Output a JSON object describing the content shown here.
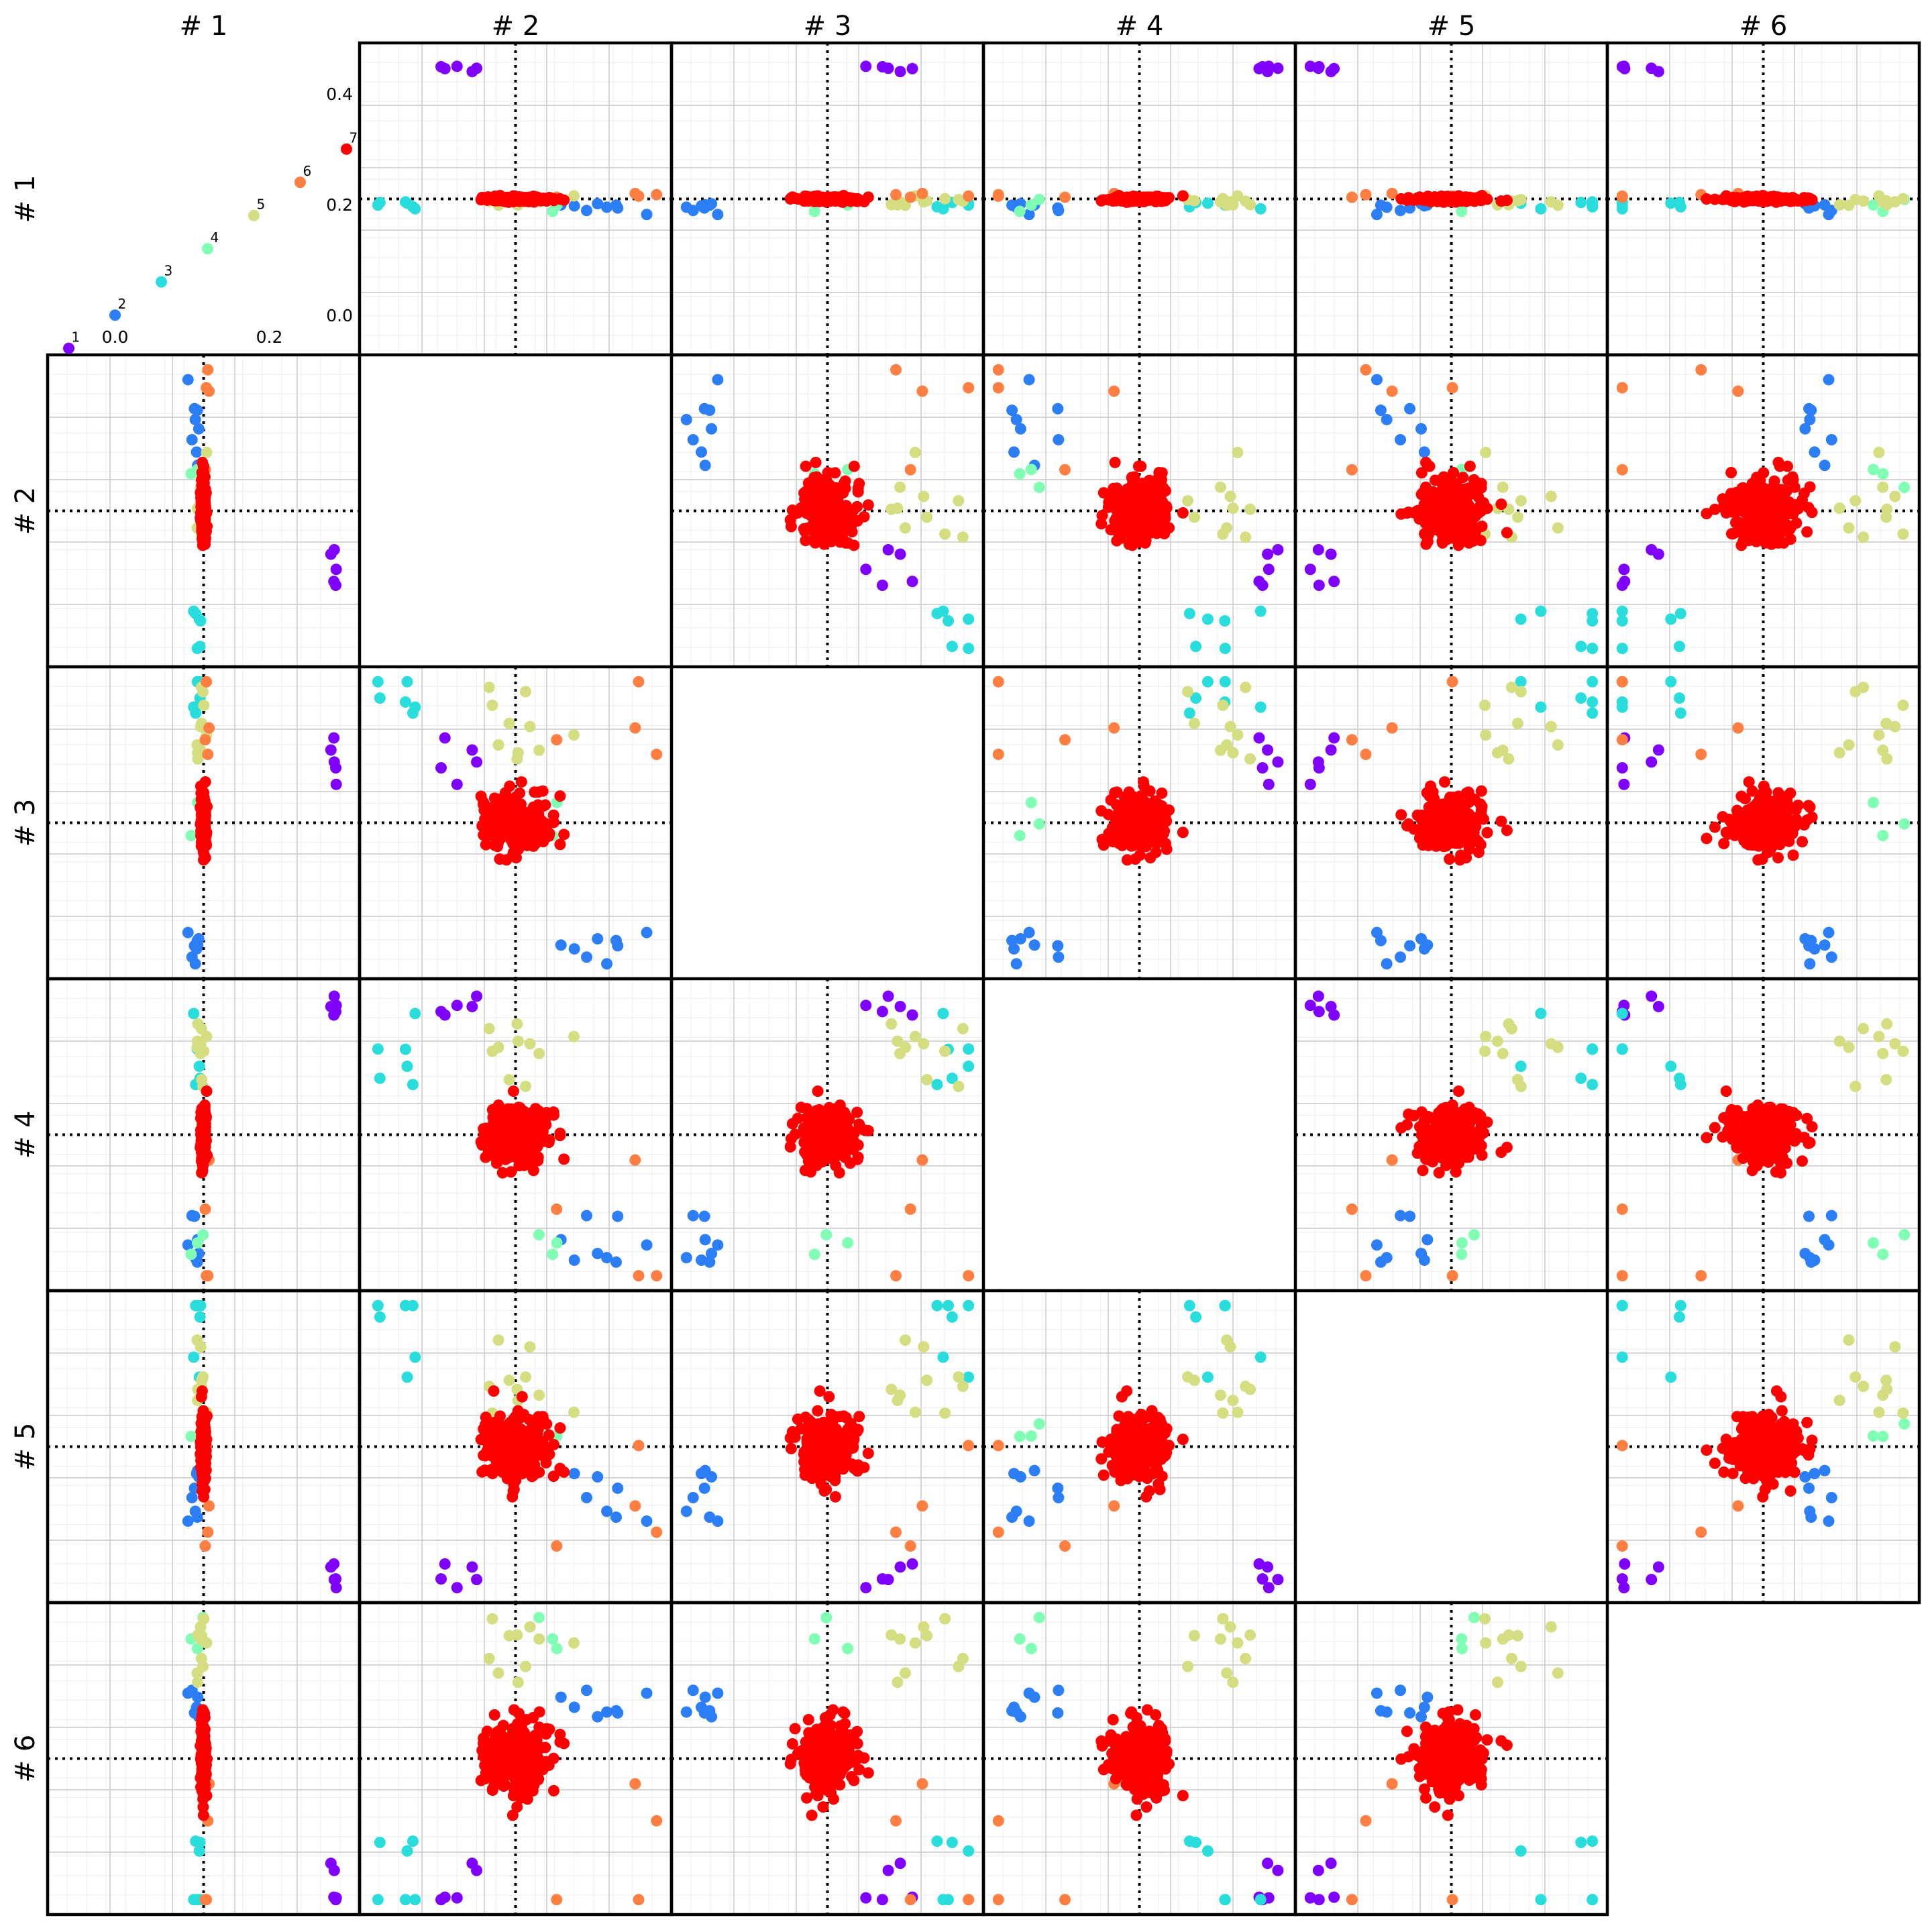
{
  "chart_data": {
    "type": "scatter",
    "title": "",
    "column_headers": [
      "# 1",
      "# 2",
      "# 3",
      "# 4",
      "# 5",
      "# 6"
    ],
    "row_headers": [
      "# 1",
      "# 2",
      "# 3",
      "# 4",
      "# 5",
      "# 6"
    ],
    "diagonal_eigenvalues": {
      "type": "scatter",
      "labels": [
        "1",
        "2",
        "3",
        "4",
        "5",
        "6",
        "7"
      ],
      "values": [
        -0.06,
        0.0,
        0.06,
        0.12,
        0.18,
        0.24,
        0.3
      ],
      "x_tick_labels": [
        "0.0",
        "0.2"
      ],
      "y_tick_labels": [
        "0.0",
        "0.2",
        "0.4"
      ],
      "xlim": [
        -0.07,
        0.31
      ],
      "ylim": [
        -0.05,
        0.47
      ]
    },
    "cluster_colors": [
      "#8000ff",
      "#2c7ef7",
      "#2adddd",
      "#80ffb4",
      "#d4dd80",
      "#ff7e41",
      "#ff0000"
    ],
    "cluster_sizes": [
      5,
      8,
      6,
      3,
      10,
      4,
      260
    ],
    "cluster_centers": [
      [
        0.45,
        -0.2,
        0.24,
        0.48,
        -0.48,
        -0.45
      ],
      [
        -0.03,
        0.3,
        -0.44,
        -0.4,
        -0.18,
        0.22
      ],
      [
        -0.03,
        -0.42,
        0.44,
        0.36,
        0.46,
        -0.4
      ],
      [
        -0.02,
        0.1,
        0.02,
        -0.34,
        0.08,
        0.36
      ],
      [
        -0.01,
        0.0,
        0.34,
        0.28,
        0.24,
        0.4
      ],
      [
        0.01,
        0.42,
        0.28,
        -0.28,
        -0.4,
        -0.2
      ],
      [
        0.0,
        0.0,
        0.0,
        0.0,
        0.0,
        0.0
      ]
    ],
    "cluster_spreads": [
      [
        0.01,
        0.06,
        0.06,
        0.05,
        0.06,
        0.06
      ],
      [
        0.01,
        0.08,
        0.06,
        0.08,
        0.1,
        0.08
      ],
      [
        0.01,
        0.1,
        0.08,
        0.12,
        0.1,
        0.12
      ],
      [
        0.01,
        0.08,
        0.06,
        0.06,
        0.06,
        0.06
      ],
      [
        0.01,
        0.12,
        0.1,
        0.08,
        0.1,
        0.1
      ],
      [
        0.01,
        0.2,
        0.24,
        0.22,
        0.22,
        0.18
      ],
      [
        0.004,
        0.06,
        0.05,
        0.05,
        0.06,
        0.06
      ]
    ],
    "axis_range": [
      -0.5,
      0.5
    ],
    "grid": true,
    "reference_lines": "dotted at 0 in each panel"
  }
}
